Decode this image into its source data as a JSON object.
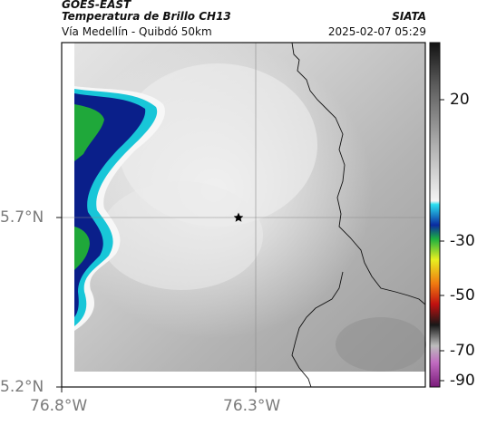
{
  "header": {
    "satellite": "GOES-EAST",
    "product": "Temperatura de Brillo CH13",
    "agency": "SIATA",
    "location": "Vía Medellín - Quibdó 50km",
    "datetime": "2025-02-07 05:29"
  },
  "map": {
    "lat_ticks": [
      "5.7°N",
      "5.2°N"
    ],
    "lon_ticks": [
      "76.8°W",
      "76.3°W"
    ],
    "gridlines": true,
    "marker_icon": "star-icon",
    "colors": {
      "land": "#9a9a9a",
      "warm_gray": "#d6d6d6",
      "cold_cyan": "#18c6d8",
      "deep_blue": "#0a1f8a",
      "green": "#1fa83a"
    }
  },
  "colorbar": {
    "ticks": [
      "20",
      "-30",
      "-50",
      "-70",
      "-90"
    ]
  }
}
